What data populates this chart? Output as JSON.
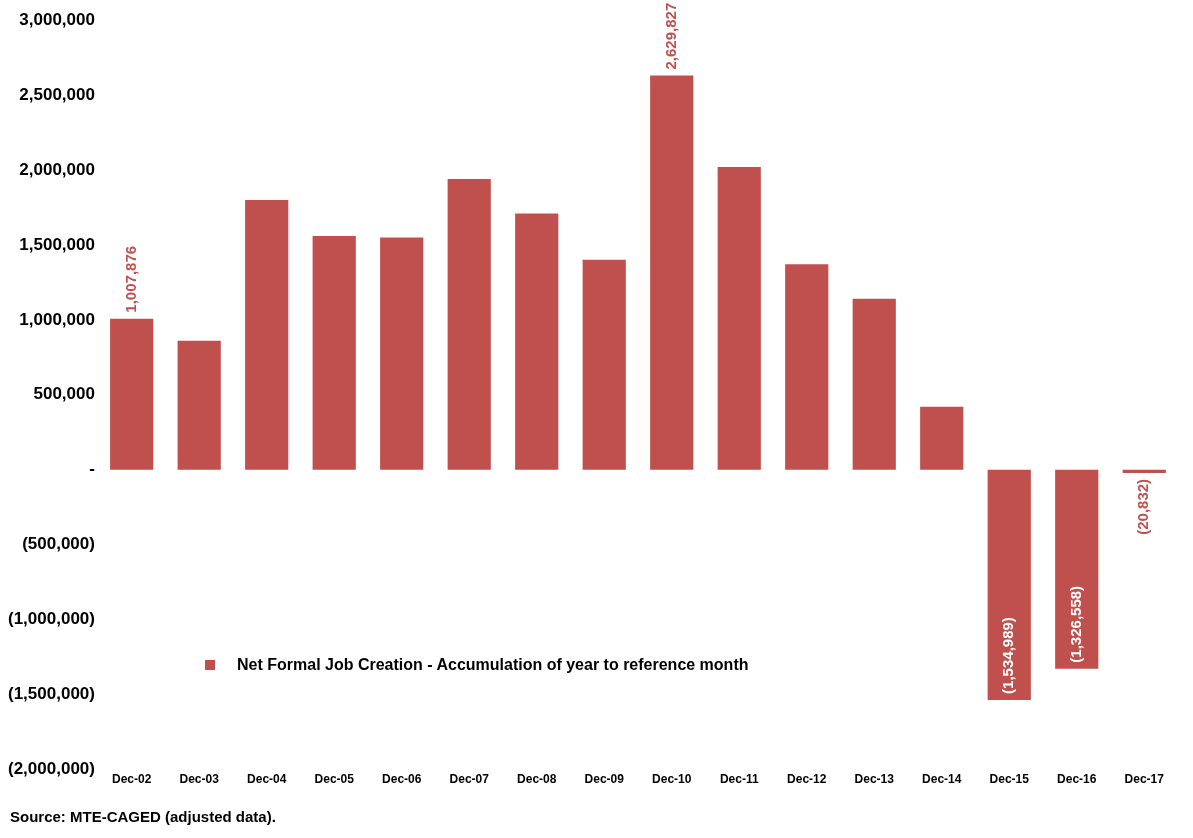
{
  "chart_data": {
    "type": "bar",
    "categories": [
      "Dec-02",
      "Dec-03",
      "Dec-04",
      "Dec-05",
      "Dec-06",
      "Dec-07",
      "Dec-08",
      "Dec-09",
      "Dec-10",
      "Dec-11",
      "Dec-12",
      "Dec-13",
      "Dec-14",
      "Dec-15",
      "Dec-16",
      "Dec-17"
    ],
    "series": [
      {
        "name": "Net Formal Job Creation  - Accumulation of year to reference month",
        "color": "#c0504d",
        "values": [
          1007876,
          860000,
          1800000,
          1560000,
          1550000,
          1940000,
          1710000,
          1400000,
          2629827,
          2020000,
          1370000,
          1140000,
          420000,
          -1534989,
          -1326558,
          -20832
        ],
        "value_labels": [
          "1,007,876",
          null,
          null,
          null,
          null,
          null,
          null,
          null,
          "2,629,827",
          null,
          null,
          null,
          null,
          "(1,534,989)",
          "(1,326,558)",
          "(20,832)"
        ]
      }
    ],
    "ylim": [
      -2000000,
      3000000
    ],
    "yticks": [
      {
        "value": -2000000,
        "label": "(2,000,000)"
      },
      {
        "value": -1500000,
        "label": "(1,500,000)"
      },
      {
        "value": -1000000,
        "label": "(1,000,000)"
      },
      {
        "value": -500000,
        "label": "(500,000)"
      },
      {
        "value": 0,
        "label": "-"
      },
      {
        "value": 500000,
        "label": "500,000"
      },
      {
        "value": 1000000,
        "label": "1,000,000"
      },
      {
        "value": 1500000,
        "label": "1,500,000"
      },
      {
        "value": 2000000,
        "label": "2,000,000"
      },
      {
        "value": 2500000,
        "label": "2,500,000"
      },
      {
        "value": 3000000,
        "label": "3,000,000"
      }
    ],
    "grid": false,
    "legend": "bottom left",
    "annotations": [
      "Source: MTE-CAGED (adjusted data)."
    ]
  }
}
